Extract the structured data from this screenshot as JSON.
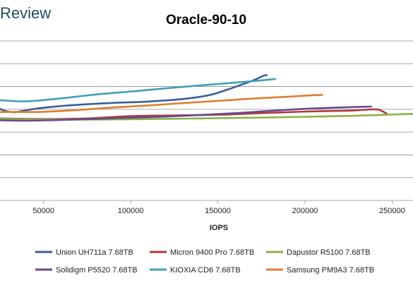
{
  "watermark": "Review",
  "chart_data": {
    "type": "line",
    "title": "Oracle-90-10",
    "xlabel": "IOPS",
    "ylabel": "",
    "xlim": [
      25000,
      262000
    ],
    "ylim": [
      0,
      7
    ],
    "x_ticks": [
      50000,
      100000,
      150000,
      200000,
      250000
    ],
    "x_tick_labels": [
      "50000",
      "100000",
      "150000",
      "200000",
      "250000"
    ],
    "grid": "horizontal",
    "legend_position": "bottom",
    "series": [
      {
        "name": "Union UH711a 7.68TB",
        "color": "#3a5f9a",
        "points": [
          [
            25000,
            4.02
          ],
          [
            28000,
            3.93
          ],
          [
            33000,
            3.87
          ],
          [
            38000,
            3.93
          ],
          [
            50000,
            4.07
          ],
          [
            70000,
            4.2
          ],
          [
            90000,
            4.28
          ],
          [
            110000,
            4.34
          ],
          [
            130000,
            4.45
          ],
          [
            145000,
            4.62
          ],
          [
            155000,
            4.85
          ],
          [
            165000,
            5.12
          ],
          [
            172000,
            5.32
          ],
          [
            176000,
            5.47
          ],
          [
            178000,
            5.5
          ]
        ]
      },
      {
        "name": "Micron 9400 Pro 7.68TB",
        "color": "#b23a3a",
        "points": [
          [
            25000,
            3.6
          ],
          [
            50000,
            3.57
          ],
          [
            75000,
            3.6
          ],
          [
            100000,
            3.7
          ],
          [
            125000,
            3.73
          ],
          [
            150000,
            3.76
          ],
          [
            175000,
            3.83
          ],
          [
            200000,
            3.9
          ],
          [
            225000,
            3.94
          ],
          [
            240000,
            4.0
          ],
          [
            244000,
            3.93
          ],
          [
            247000,
            3.8
          ]
        ]
      },
      {
        "name": "Dapustor R5100 7.68TB",
        "color": "#8bb24a",
        "points": [
          [
            25000,
            3.58
          ],
          [
            50000,
            3.55
          ],
          [
            80000,
            3.55
          ],
          [
            110000,
            3.57
          ],
          [
            140000,
            3.6
          ],
          [
            170000,
            3.63
          ],
          [
            200000,
            3.67
          ],
          [
            230000,
            3.72
          ],
          [
            262000,
            3.8
          ]
        ]
      },
      {
        "name": "Solidigm P5520 7.68TB",
        "color": "#6a4a8e",
        "points": [
          [
            25000,
            3.52
          ],
          [
            40000,
            3.5
          ],
          [
            60000,
            3.53
          ],
          [
            80000,
            3.58
          ],
          [
            100000,
            3.63
          ],
          [
            120000,
            3.68
          ],
          [
            140000,
            3.75
          ],
          [
            160000,
            3.83
          ],
          [
            180000,
            3.93
          ],
          [
            200000,
            4.02
          ],
          [
            220000,
            4.08
          ],
          [
            238000,
            4.12
          ]
        ]
      },
      {
        "name": "KIOXIA CD6 7.68TB",
        "color": "#3fa1b7",
        "points": [
          [
            25000,
            4.4
          ],
          [
            40000,
            4.35
          ],
          [
            60000,
            4.48
          ],
          [
            80000,
            4.65
          ],
          [
            100000,
            4.78
          ],
          [
            120000,
            4.92
          ],
          [
            140000,
            5.05
          ],
          [
            160000,
            5.17
          ],
          [
            175000,
            5.27
          ],
          [
            183000,
            5.33
          ]
        ]
      },
      {
        "name": "Samsung PM9A3 7.68TB",
        "color": "#e07d2e",
        "points": [
          [
            25000,
            3.88
          ],
          [
            50000,
            3.89
          ],
          [
            70000,
            3.97
          ],
          [
            90000,
            4.08
          ],
          [
            110000,
            4.17
          ],
          [
            130000,
            4.27
          ],
          [
            150000,
            4.37
          ],
          [
            170000,
            4.47
          ],
          [
            190000,
            4.55
          ],
          [
            205000,
            4.62
          ],
          [
            210000,
            4.63
          ]
        ]
      }
    ]
  }
}
